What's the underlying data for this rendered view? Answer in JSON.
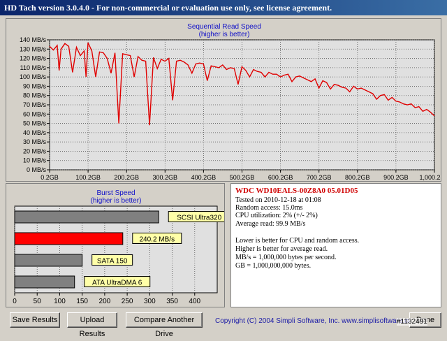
{
  "window": {
    "title": "HD Tach version 3.0.4.0  -  For non-commercial or evaluation use only, see license agreement."
  },
  "sequential": {
    "title": "Sequential Read Speed",
    "subtitle": "(higher is better)",
    "line_color": "#e00000"
  },
  "burst": {
    "title": "Burst Speed",
    "subtitle": "(higher is better)"
  },
  "chart_data": [
    {
      "type": "line",
      "title": "Sequential Read Speed",
      "subtitle": "(higher is better)",
      "xlabel": "",
      "ylabel": "",
      "x_ticks": [
        "0.2GB",
        "100.2GB",
        "200.2GB",
        "300.2GB",
        "400.2GB",
        "500.2GB",
        "600.2GB",
        "700.2GB",
        "800.2GB",
        "900.2GB",
        "1,000.2GB"
      ],
      "y_ticks": [
        "0 MB/s",
        "10 MB/s",
        "20 MB/s",
        "30 MB/s",
        "40 MB/s",
        "50 MB/s",
        "60 MB/s",
        "70 MB/s",
        "80 MB/s",
        "90 MB/s",
        "100 MB/s",
        "110 MB/s",
        "120 MB/s",
        "130 MB/s",
        "140 MB/s"
      ],
      "xlim": [
        0.2,
        1000.2
      ],
      "ylim": [
        0,
        140
      ],
      "grid": true,
      "series": [
        {
          "x": [
            0.2,
            10,
            20,
            25,
            30,
            40,
            50,
            60,
            70,
            80,
            90,
            95,
            100,
            110,
            120,
            130,
            140,
            150,
            160,
            170,
            180,
            190,
            200,
            210,
            220,
            230,
            240,
            250,
            260,
            270,
            280,
            290,
            300,
            310,
            320,
            330,
            340,
            350,
            360,
            370,
            380,
            390,
            400,
            410,
            420,
            430,
            440,
            450,
            460,
            470,
            480,
            490,
            500,
            510,
            520,
            530,
            540,
            550,
            560,
            570,
            580,
            590,
            600,
            610,
            620,
            630,
            640,
            650,
            660,
            670,
            680,
            690,
            700,
            710,
            720,
            730,
            740,
            750,
            760,
            770,
            780,
            790,
            800,
            810,
            820,
            830,
            840,
            850,
            860,
            870,
            880,
            890,
            900,
            910,
            920,
            930,
            940,
            950,
            960,
            970,
            980,
            990,
            1000.2
          ],
          "y": [
            133,
            129,
            134,
            107,
            130,
            136,
            133,
            105,
            132,
            123,
            128,
            100,
            137,
            128,
            100,
            127,
            126,
            120,
            104,
            126,
            50,
            125,
            124,
            123,
            100,
            122,
            118,
            117,
            48,
            121,
            109,
            119,
            117,
            120,
            75,
            117,
            118,
            116,
            113,
            104,
            114,
            115,
            114,
            96,
            112,
            111,
            110,
            113,
            108,
            110,
            109,
            92,
            111,
            107,
            100,
            108,
            106,
            105,
            100,
            105,
            103,
            103,
            100,
            102,
            103,
            95,
            100,
            101,
            99,
            97,
            95,
            98,
            88,
            96,
            94,
            87,
            92,
            91,
            89,
            88,
            84,
            90,
            87,
            88,
            86,
            84,
            82,
            76,
            80,
            81,
            75,
            78,
            74,
            73,
            71,
            70,
            71,
            67,
            68,
            63,
            65,
            62,
            58
          ]
        }
      ]
    },
    {
      "type": "bar",
      "orientation": "horizontal",
      "title": "Burst Speed",
      "subtitle": "(higher is better)",
      "categories": [
        "SCSI Ultra320",
        "240.2 MB/s",
        "SATA 150",
        "ATA UltraDMA 6"
      ],
      "values": [
        320,
        240.2,
        150,
        133
      ],
      "colors": [
        "#808080",
        "#ff0000",
        "#808080",
        "#808080"
      ],
      "x_ticks": [
        "0",
        "50",
        "100",
        "150",
        "200",
        "250",
        "300",
        "350",
        "400"
      ],
      "xlim": [
        0,
        450
      ]
    }
  ],
  "info": {
    "drive": "WDC WD10EALS-00Z8A0 05.01D05",
    "tested": "Tested on 2010-12-18 at 01:08",
    "random_access": "Random access: 15.0ms",
    "cpu": "CPU utilization: 2% (+/- 2%)",
    "avg_read": "Average read: 99.9 MB/s",
    "note1": "Lower is better for CPU and random access.",
    "note2": "Higher is better for average read.",
    "note3": "MB/s = 1,000,000 bytes per second.",
    "note4": "GB = 1,000,000,000 bytes."
  },
  "buttons": {
    "save": "Save Results",
    "upload": "Upload Results",
    "compare": "Compare Another Drive",
    "done": "Done"
  },
  "footer": {
    "copyright": "Copyright (C) 2004 Simpli Software, Inc. www.simplisoftware.com",
    "watermark": "#1132491"
  }
}
